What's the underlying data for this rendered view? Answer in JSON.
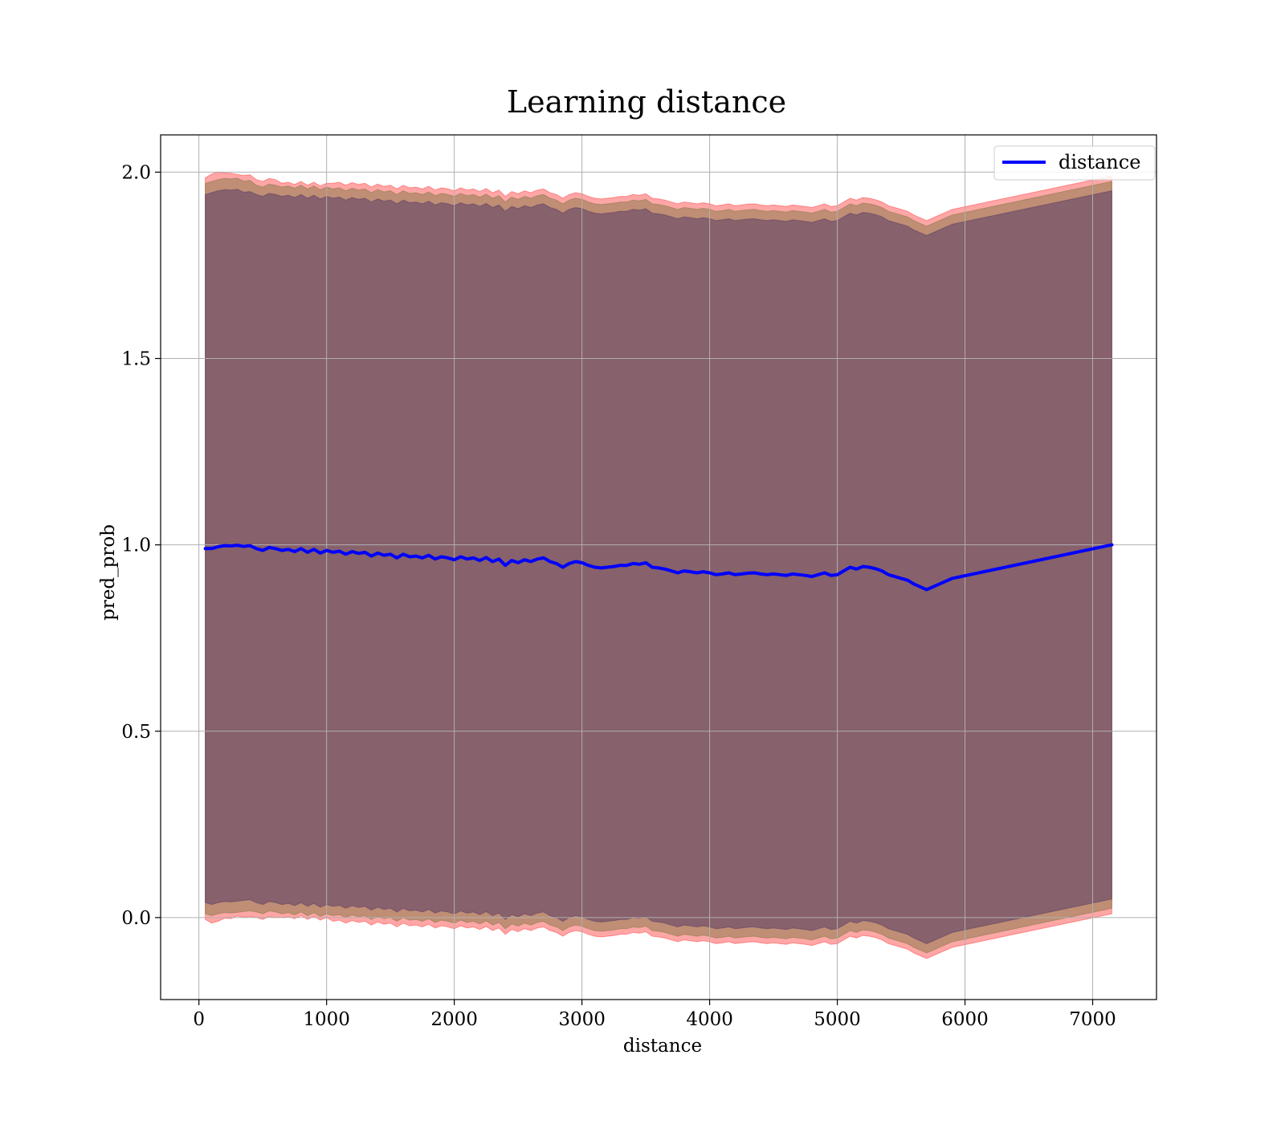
{
  "chart_data": {
    "type": "line",
    "title": "Learning distance",
    "xlabel": "distance",
    "ylabel": "pred_prob",
    "xlim": [
      -300,
      7500
    ],
    "ylim": [
      -0.22,
      2.1
    ],
    "xticks": [
      0,
      1000,
      2000,
      3000,
      4000,
      5000,
      6000,
      7000
    ],
    "yticks": [
      0.0,
      0.5,
      1.0,
      1.5,
      2.0
    ],
    "xtick_labels": [
      "0",
      "1000",
      "2000",
      "3000",
      "4000",
      "5000",
      "6000",
      "7000"
    ],
    "ytick_labels": [
      "0.0",
      "0.5",
      "1.0",
      "1.5",
      "2.0"
    ],
    "grid": true,
    "legend_position": "top-right",
    "series": [
      {
        "name": "distance",
        "color": "#0000ff",
        "x": [
          50,
          100,
          150,
          200,
          250,
          300,
          350,
          400,
          450,
          500,
          550,
          600,
          650,
          700,
          750,
          800,
          850,
          900,
          950,
          1000,
          1050,
          1100,
          1150,
          1200,
          1250,
          1300,
          1350,
          1400,
          1450,
          1500,
          1550,
          1600,
          1650,
          1700,
          1750,
          1800,
          1850,
          1900,
          1950,
          2000,
          2050,
          2100,
          2150,
          2200,
          2250,
          2300,
          2350,
          2400,
          2450,
          2500,
          2550,
          2600,
          2650,
          2700,
          2750,
          2800,
          2850,
          2900,
          2950,
          3000,
          3050,
          3100,
          3150,
          3200,
          3250,
          3300,
          3350,
          3400,
          3450,
          3500,
          3550,
          3600,
          3650,
          3700,
          3750,
          3800,
          3850,
          3900,
          3950,
          4000,
          4050,
          4100,
          4150,
          4200,
          4250,
          4300,
          4350,
          4400,
          4450,
          4500,
          4550,
          4600,
          4650,
          4700,
          4750,
          4800,
          4850,
          4900,
          4950,
          5000,
          5050,
          5100,
          5150,
          5200,
          5250,
          5300,
          5350,
          5400,
          5450,
          5500,
          5550,
          5600,
          5700,
          5900,
          7150
        ],
        "y": [
          0.99,
          0.99,
          0.995,
          0.998,
          0.997,
          0.999,
          0.996,
          0.998,
          0.99,
          0.985,
          0.993,
          0.99,
          0.985,
          0.988,
          0.982,
          0.99,
          0.98,
          0.988,
          0.978,
          0.985,
          0.98,
          0.983,
          0.975,
          0.982,
          0.977,
          0.98,
          0.97,
          0.978,
          0.972,
          0.975,
          0.965,
          0.975,
          0.968,
          0.97,
          0.965,
          0.972,
          0.962,
          0.968,
          0.965,
          0.96,
          0.968,
          0.962,
          0.965,
          0.958,
          0.966,
          0.955,
          0.962,
          0.945,
          0.958,
          0.952,
          0.96,
          0.955,
          0.962,
          0.965,
          0.955,
          0.95,
          0.94,
          0.95,
          0.955,
          0.952,
          0.945,
          0.94,
          0.938,
          0.94,
          0.942,
          0.945,
          0.945,
          0.95,
          0.948,
          0.952,
          0.94,
          0.938,
          0.935,
          0.93,
          0.925,
          0.93,
          0.928,
          0.925,
          0.928,
          0.925,
          0.92,
          0.922,
          0.925,
          0.92,
          0.922,
          0.924,
          0.925,
          0.922,
          0.92,
          0.922,
          0.92,
          0.918,
          0.922,
          0.92,
          0.918,
          0.915,
          0.92,
          0.925,
          0.918,
          0.92,
          0.93,
          0.94,
          0.935,
          0.942,
          0.94,
          0.936,
          0.93,
          0.92,
          0.915,
          0.91,
          0.905,
          0.895,
          0.88,
          0.91,
          1.0
        ]
      }
    ],
    "bands": [
      {
        "color": "#ff0000",
        "opacity": 0.35,
        "offsets": [
          0.995,
          1.005,
          1.005,
          1.0,
          1.0,
          0.995,
          0.995,
          0.995,
          0.99,
          0.99,
          0.99,
          0.99,
          0.985,
          0.985,
          0.985,
          0.985,
          0.985,
          0.985,
          0.985,
          0.985,
          0.99,
          0.99,
          0.99,
          0.99,
          0.99,
          0.99,
          0.99,
          0.99,
          0.99,
          0.99,
          0.99,
          0.99,
          0.99,
          0.99,
          0.99,
          0.99,
          0.99,
          0.99,
          0.99,
          0.99,
          0.99,
          0.99,
          0.99,
          0.99,
          0.99,
          0.99,
          0.99,
          0.99,
          0.99,
          0.99,
          0.99,
          0.99,
          0.99,
          0.99,
          0.99,
          0.99,
          0.99,
          0.99,
          0.99,
          0.99,
          0.99,
          0.99,
          0.99,
          0.99,
          0.99,
          0.99,
          0.99,
          0.99,
          0.99,
          0.99,
          0.99,
          0.99,
          0.99,
          0.99,
          0.99,
          0.99,
          0.99,
          0.99,
          0.99,
          0.99,
          0.99,
          0.99,
          0.99,
          0.99,
          0.99,
          0.99,
          0.99,
          0.99,
          0.99,
          0.99,
          0.99,
          0.99,
          0.99,
          0.99,
          0.99,
          0.99,
          0.99,
          0.99,
          0.99,
          0.99,
          0.99,
          0.99,
          0.99,
          0.99,
          0.99,
          0.99,
          0.99,
          0.99,
          0.99,
          0.99,
          0.99,
          0.99,
          0.99,
          0.99,
          0.99
        ]
      },
      {
        "color": "#8b7a4a",
        "opacity": 0.55,
        "offsets": [
          0.98,
          0.985,
          0.985,
          0.985,
          0.985,
          0.985,
          0.98,
          0.98,
          0.975,
          0.975,
          0.975,
          0.975,
          0.975,
          0.975,
          0.975,
          0.975,
          0.975,
          0.975,
          0.975,
          0.975,
          0.975,
          0.975,
          0.975,
          0.975,
          0.975,
          0.975,
          0.975,
          0.975,
          0.975,
          0.975,
          0.975,
          0.975,
          0.975,
          0.975,
          0.975,
          0.975,
          0.975,
          0.975,
          0.975,
          0.975,
          0.975,
          0.975,
          0.975,
          0.975,
          0.975,
          0.975,
          0.975,
          0.975,
          0.975,
          0.975,
          0.975,
          0.975,
          0.975,
          0.975,
          0.975,
          0.975,
          0.975,
          0.975,
          0.975,
          0.975,
          0.975,
          0.975,
          0.975,
          0.975,
          0.975,
          0.975,
          0.975,
          0.975,
          0.975,
          0.975,
          0.975,
          0.975,
          0.975,
          0.975,
          0.975,
          0.975,
          0.975,
          0.975,
          0.975,
          0.975,
          0.975,
          0.975,
          0.975,
          0.975,
          0.975,
          0.975,
          0.975,
          0.975,
          0.975,
          0.975,
          0.975,
          0.975,
          0.975,
          0.975,
          0.975,
          0.975,
          0.975,
          0.975,
          0.975,
          0.975,
          0.975,
          0.975,
          0.975,
          0.975,
          0.975,
          0.975,
          0.975,
          0.975,
          0.975,
          0.975,
          0.975,
          0.975,
          0.975,
          0.975,
          0.975
        ]
      },
      {
        "color": "#5a3d66",
        "opacity": 0.55,
        "offsets": [
          0.95,
          0.955,
          0.955,
          0.955,
          0.955,
          0.955,
          0.95,
          0.95,
          0.95,
          0.95,
          0.95,
          0.95,
          0.95,
          0.95,
          0.95,
          0.95,
          0.95,
          0.95,
          0.95,
          0.95,
          0.95,
          0.95,
          0.95,
          0.95,
          0.95,
          0.95,
          0.95,
          0.95,
          0.95,
          0.95,
          0.95,
          0.95,
          0.95,
          0.95,
          0.95,
          0.95,
          0.95,
          0.95,
          0.95,
          0.95,
          0.95,
          0.95,
          0.95,
          0.95,
          0.95,
          0.95,
          0.95,
          0.95,
          0.95,
          0.95,
          0.95,
          0.95,
          0.95,
          0.95,
          0.95,
          0.95,
          0.95,
          0.95,
          0.95,
          0.95,
          0.95,
          0.95,
          0.95,
          0.95,
          0.95,
          0.95,
          0.95,
          0.95,
          0.95,
          0.95,
          0.95,
          0.95,
          0.95,
          0.95,
          0.95,
          0.95,
          0.95,
          0.95,
          0.95,
          0.95,
          0.95,
          0.95,
          0.95,
          0.95,
          0.95,
          0.95,
          0.95,
          0.95,
          0.95,
          0.95,
          0.95,
          0.95,
          0.95,
          0.95,
          0.95,
          0.95,
          0.95,
          0.95,
          0.95,
          0.95,
          0.95,
          0.95,
          0.95,
          0.95,
          0.95,
          0.95,
          0.95,
          0.95,
          0.95,
          0.95,
          0.95,
          0.95,
          0.95,
          0.95,
          0.95
        ]
      }
    ]
  }
}
